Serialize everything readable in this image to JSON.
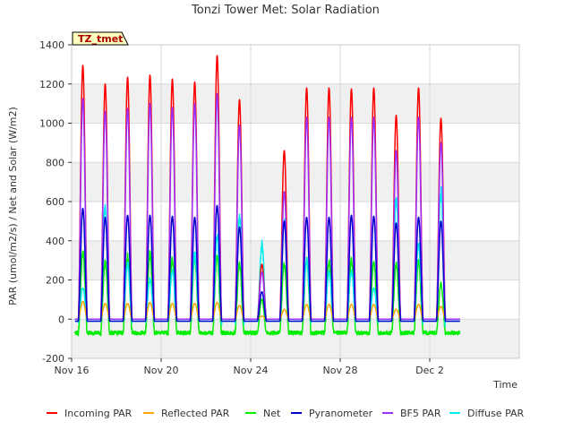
{
  "chart_data": {
    "type": "line",
    "title": "Tonzi Tower Met: Solar Radiation",
    "xlabel": "Time",
    "ylabel": "PAR (umol/m2/s) / Net and Solar (W/m2)",
    "site_badge": "TZ_tmet",
    "xlim": [
      0,
      20
    ],
    "ylim": [
      -200,
      1400
    ],
    "x_ticks": [
      {
        "day": 0,
        "label": "Nov 16"
      },
      {
        "day": 4,
        "label": "Nov 20"
      },
      {
        "day": 8,
        "label": "Nov 24"
      },
      {
        "day": 12,
        "label": "Nov 28"
      },
      {
        "day": 16,
        "label": "Dec 2"
      }
    ],
    "y_ticks": [
      -200,
      0,
      200,
      400,
      600,
      800,
      1000,
      1200,
      1400
    ],
    "grid": true,
    "legend_position": "bottom",
    "day_offsets": [
      0,
      1,
      2,
      3,
      4,
      5,
      6,
      7,
      8,
      9,
      10,
      11,
      12,
      13,
      14,
      15,
      16,
      17
    ],
    "series": [
      {
        "name": "Incoming PAR",
        "color": "#ff0000",
        "baseline": 0,
        "daily_peaks": [
          1295,
          1200,
          1235,
          1245,
          1225,
          1210,
          1345,
          1120,
          280,
          860,
          1180,
          1180,
          1175,
          1180,
          1040,
          1180,
          1025,
          0
        ]
      },
      {
        "name": "Reflected PAR",
        "color": "#ffa500",
        "baseline": 0,
        "daily_peaks": [
          90,
          80,
          80,
          85,
          80,
          80,
          85,
          70,
          15,
          50,
          75,
          75,
          75,
          75,
          50,
          75,
          65,
          0
        ]
      },
      {
        "name": "Net",
        "color": "#00ee00",
        "baseline": -70,
        "daily_peaks": [
          340,
          290,
          320,
          330,
          305,
          310,
          320,
          280,
          100,
          280,
          300,
          300,
          300,
          290,
          280,
          290,
          180,
          0
        ]
      },
      {
        "name": "Pyranometer",
        "color": "#0000cc",
        "baseline": -10,
        "daily_peaks": [
          565,
          520,
          530,
          530,
          525,
          520,
          580,
          470,
          140,
          500,
          520,
          520,
          530,
          525,
          490,
          520,
          500,
          0
        ]
      },
      {
        "name": "BF5 PAR",
        "color": "#9b30ff",
        "baseline": 0,
        "daily_peaks": [
          1125,
          1060,
          1075,
          1100,
          1080,
          1100,
          1150,
          990,
          240,
          650,
          1030,
          1030,
          1030,
          1030,
          860,
          1030,
          900,
          0
        ]
      },
      {
        "name": "Diffuse PAR",
        "color": "#00eeee",
        "baseline": -10,
        "daily_peaks": [
          160,
          570,
          280,
          200,
          250,
          330,
          420,
          520,
          380,
          500,
          300,
          240,
          240,
          160,
          610,
          380,
          650,
          0
        ]
      }
    ]
  }
}
